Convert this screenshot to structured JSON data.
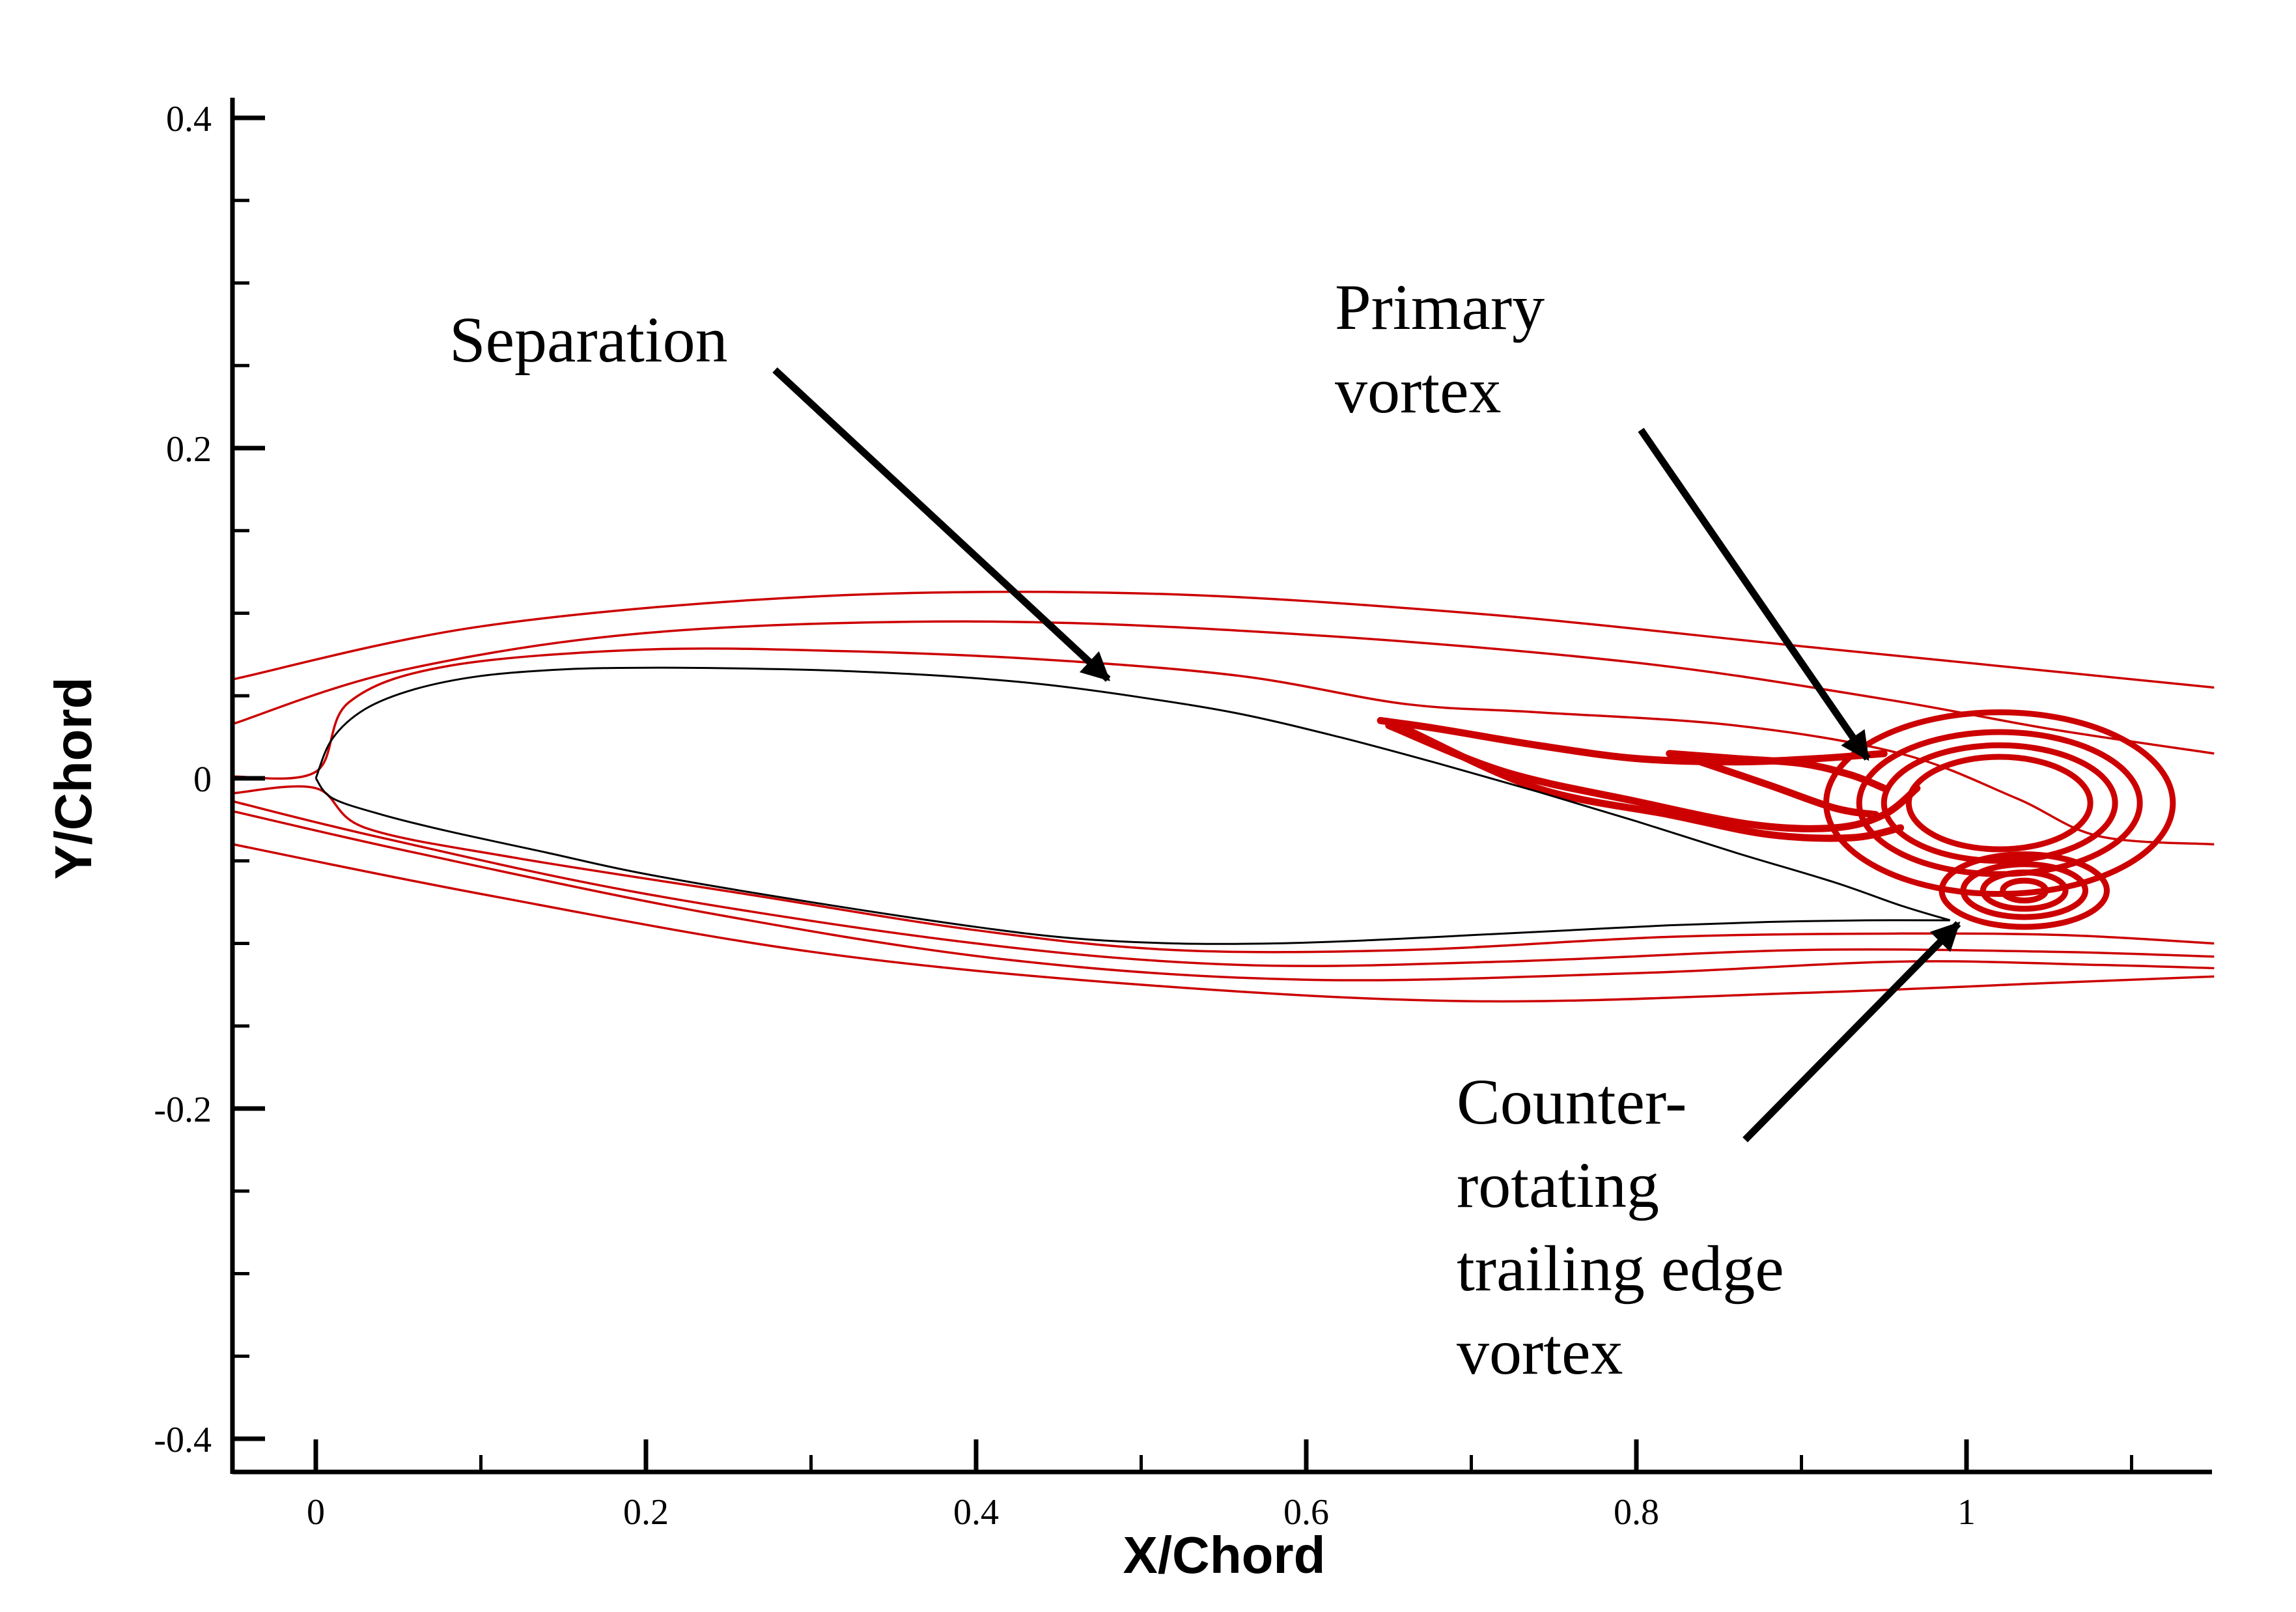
{
  "chart_data": {
    "type": "line",
    "title": "",
    "xlabel": "X/Chord",
    "ylabel": "Y/Chord",
    "xlim": [
      -0.05,
      1.15
    ],
    "ylim": [
      -0.42,
      0.41
    ],
    "x_ticks": [
      {
        "value": 0,
        "label": "0"
      },
      {
        "value": 0.2,
        "label": "0.2"
      },
      {
        "value": 0.4,
        "label": "0.4"
      },
      {
        "value": 0.6,
        "label": "0.6"
      },
      {
        "value": 0.8,
        "label": "0.8"
      },
      {
        "value": 1,
        "label": "1"
      }
    ],
    "x_minor_step": 0.1,
    "y_ticks": [
      {
        "value": 0.4,
        "label": "0.4"
      },
      {
        "value": 0.2,
        "label": "0.2"
      },
      {
        "value": 0,
        "label": "0"
      },
      {
        "value": -0.2,
        "label": "-0.2"
      },
      {
        "value": -0.4,
        "label": "-0.4"
      }
    ],
    "y_minor_step": 0.05,
    "grid": false,
    "colors": {
      "streamline": "#cc0000",
      "airfoil": "#000000",
      "axis": "#000000"
    },
    "airfoil": {
      "upper": [
        [
          0,
          0
        ],
        [
          0.01,
          0.024
        ],
        [
          0.03,
          0.042
        ],
        [
          0.06,
          0.054
        ],
        [
          0.1,
          0.062
        ],
        [
          0.15,
          0.066
        ],
        [
          0.2,
          0.067
        ],
        [
          0.26,
          0.0665
        ],
        [
          0.32,
          0.065
        ],
        [
          0.38,
          0.062
        ],
        [
          0.44,
          0.057
        ],
        [
          0.5,
          0.049
        ],
        [
          0.56,
          0.039
        ],
        [
          0.62,
          0.025
        ],
        [
          0.68,
          0.009
        ],
        [
          0.74,
          -0.008
        ],
        [
          0.8,
          -0.026
        ],
        [
          0.86,
          -0.045
        ],
        [
          0.92,
          -0.063
        ],
        [
          0.96,
          -0.077
        ],
        [
          0.99,
          -0.086
        ]
      ],
      "lower": [
        [
          0,
          0
        ],
        [
          0.01,
          -0.012
        ],
        [
          0.04,
          -0.022
        ],
        [
          0.08,
          -0.032
        ],
        [
          0.14,
          -0.045
        ],
        [
          0.2,
          -0.058
        ],
        [
          0.3,
          -0.075
        ],
        [
          0.4,
          -0.09
        ],
        [
          0.46,
          -0.097
        ],
        [
          0.52,
          -0.1
        ],
        [
          0.58,
          -0.1
        ],
        [
          0.64,
          -0.098
        ],
        [
          0.7,
          -0.095
        ],
        [
          0.76,
          -0.092
        ],
        [
          0.82,
          -0.089
        ],
        [
          0.88,
          -0.087
        ],
        [
          0.94,
          -0.086
        ],
        [
          0.99,
          -0.086
        ]
      ]
    },
    "streamlines": [
      [
        [
          -0.05,
          0.06
        ],
        [
          0.1,
          0.092
        ],
        [
          0.3,
          0.11
        ],
        [
          0.5,
          0.112
        ],
        [
          0.7,
          0.1
        ],
        [
          0.9,
          0.08
        ],
        [
          1.05,
          0.065
        ],
        [
          1.15,
          0.055
        ]
      ],
      [
        [
          -0.05,
          0.033
        ],
        [
          0.05,
          0.065
        ],
        [
          0.2,
          0.088
        ],
        [
          0.4,
          0.095
        ],
        [
          0.6,
          0.087
        ],
        [
          0.8,
          0.07
        ],
        [
          0.95,
          0.048
        ],
        [
          1.05,
          0.03
        ],
        [
          1.15,
          0.015
        ]
      ],
      [
        [
          -0.05,
          0.001
        ],
        [
          0.0,
          0.004
        ],
        [
          0.02,
          0.046
        ],
        [
          0.08,
          0.068
        ],
        [
          0.2,
          0.078
        ],
        [
          0.32,
          0.077
        ],
        [
          0.44,
          0.072
        ],
        [
          0.56,
          0.062
        ],
        [
          0.66,
          0.045
        ],
        [
          0.74,
          0.04
        ],
        [
          0.86,
          0.032
        ],
        [
          0.96,
          0.015
        ],
        [
          1.03,
          -0.012
        ],
        [
          1.08,
          -0.035
        ],
        [
          1.15,
          -0.04
        ]
      ],
      [
        [
          -0.05,
          -0.009
        ],
        [
          0.0,
          -0.006
        ],
        [
          0.03,
          -0.03
        ],
        [
          0.12,
          -0.048
        ],
        [
          0.26,
          -0.07
        ],
        [
          0.4,
          -0.092
        ],
        [
          0.52,
          -0.104
        ],
        [
          0.66,
          -0.104
        ],
        [
          0.82,
          -0.096
        ],
        [
          0.96,
          -0.094
        ],
        [
          1.06,
          -0.095
        ],
        [
          1.15,
          -0.1
        ]
      ],
      [
        [
          -0.05,
          -0.014
        ],
        [
          0.04,
          -0.036
        ],
        [
          0.2,
          -0.07
        ],
        [
          0.4,
          -0.1
        ],
        [
          0.56,
          -0.113
        ],
        [
          0.72,
          -0.111
        ],
        [
          0.9,
          -0.104
        ],
        [
          1.05,
          -0.105
        ],
        [
          1.15,
          -0.108
        ]
      ],
      [
        [
          -0.05,
          -0.02
        ],
        [
          0.06,
          -0.045
        ],
        [
          0.24,
          -0.082
        ],
        [
          0.42,
          -0.11
        ],
        [
          0.6,
          -0.122
        ],
        [
          0.8,
          -0.118
        ],
        [
          0.96,
          -0.111
        ],
        [
          1.08,
          -0.113
        ],
        [
          1.15,
          -0.115
        ]
      ],
      [
        [
          -0.05,
          -0.04
        ],
        [
          0.1,
          -0.07
        ],
        [
          0.3,
          -0.105
        ],
        [
          0.5,
          -0.125
        ],
        [
          0.7,
          -0.135
        ],
        [
          0.9,
          -0.13
        ],
        [
          1.05,
          -0.124
        ],
        [
          1.15,
          -0.12
        ]
      ]
    ],
    "vortex_streaks": [
      [
        [
          0.645,
          0.035
        ],
        [
          0.68,
          0.03
        ],
        [
          0.74,
          0.02
        ],
        [
          0.8,
          0.012
        ],
        [
          0.86,
          0.01
        ],
        [
          0.91,
          0.012
        ],
        [
          0.95,
          0.015
        ]
      ],
      [
        [
          0.65,
          0.032
        ],
        [
          0.72,
          0.004
        ],
        [
          0.8,
          -0.014
        ],
        [
          0.87,
          -0.028
        ],
        [
          0.92,
          -0.03
        ],
        [
          0.95,
          -0.022
        ],
        [
          0.97,
          -0.006
        ]
      ],
      [
        [
          0.66,
          0.03
        ],
        [
          0.74,
          -0.006
        ],
        [
          0.82,
          -0.022
        ],
        [
          0.88,
          -0.034
        ],
        [
          0.93,
          -0.036
        ],
        [
          0.96,
          -0.03
        ]
      ],
      [
        [
          0.82,
          0.015
        ],
        [
          0.86,
          0.012
        ],
        [
          0.9,
          0.009
        ],
        [
          0.93,
          0.002
        ],
        [
          0.95,
          -0.006
        ]
      ],
      [
        [
          0.83,
          0.013
        ],
        [
          0.88,
          -0.004
        ],
        [
          0.92,
          -0.018
        ],
        [
          0.945,
          -0.022
        ]
      ]
    ],
    "primary_vortex": {
      "center": [
        1.02,
        -0.015
      ],
      "radii": [
        [
          0.105,
          0.055
        ],
        [
          0.085,
          0.043
        ],
        [
          0.07,
          0.035
        ],
        [
          0.055,
          0.028
        ]
      ]
    },
    "trailing_vortex": {
      "center": [
        1.035,
        -0.068
      ],
      "radii": [
        [
          0.05,
          0.022
        ],
        [
          0.037,
          0.016
        ],
        [
          0.025,
          0.011
        ],
        [
          0.013,
          0.006
        ]
      ]
    },
    "annotations": [
      {
        "id": "separation",
        "lines": [
          "Separation"
        ],
        "arrow_to": [
          0.48,
          0.06
        ]
      },
      {
        "id": "primary-vortex",
        "lines": [
          "Primary",
          "vortex"
        ],
        "arrow_to": [
          0.94,
          0.012
        ]
      },
      {
        "id": "counter-vortex",
        "lines": [
          "Counter-",
          "rotating",
          "trailing edge",
          "vortex"
        ],
        "arrow_to": [
          0.995,
          -0.088
        ]
      }
    ]
  }
}
